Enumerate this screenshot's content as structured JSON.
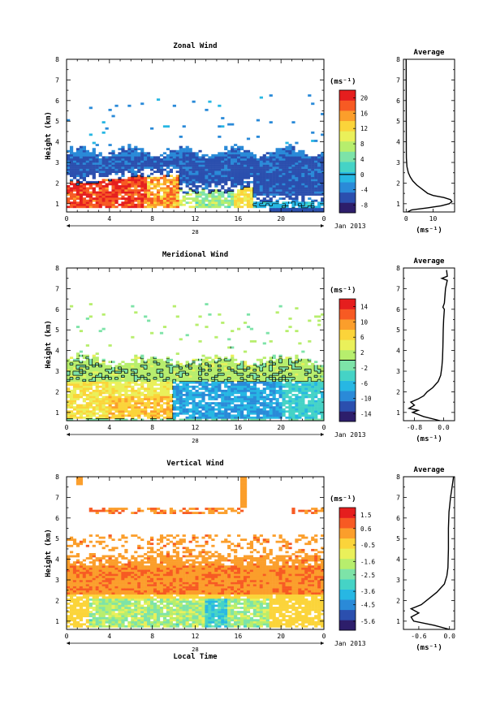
{
  "chart_data": [
    {
      "type": "heatmap",
      "title": "Zonal Wind",
      "ylabel": "Height (km)",
      "xticks": [
        "0",
        "4",
        "8",
        "12",
        "16",
        "20",
        "0"
      ],
      "yticks": [
        "1",
        "2",
        "3",
        "4",
        "5",
        "6",
        "7",
        "8"
      ],
      "xlim": [
        0,
        24
      ],
      "ylim": [
        0.6,
        8
      ],
      "date_day": "28",
      "date_label": "Jan 2013",
      "colorbar": {
        "unit": "(ms⁻¹)",
        "ticks": [
          "20",
          "16",
          "12",
          "8",
          "4",
          "0",
          "-4",
          "-8"
        ],
        "range": [
          -10,
          22
        ],
        "contour_level": 0
      },
      "average_panel": {
        "title": "Average",
        "xlabel": "(ms⁻¹)",
        "xticks": [
          "0",
          "10"
        ],
        "xlim": [
          -1,
          18
        ],
        "profile": [
          [
            0.6,
            0.5
          ],
          [
            0.7,
            2
          ],
          [
            0.8,
            8
          ],
          [
            0.9,
            13
          ],
          [
            1.0,
            16
          ],
          [
            1.1,
            17
          ],
          [
            1.2,
            16.5
          ],
          [
            1.3,
            14
          ],
          [
            1.4,
            10
          ],
          [
            1.5,
            8
          ],
          [
            1.7,
            6
          ],
          [
            1.9,
            4
          ],
          [
            2.1,
            2.5
          ],
          [
            2.3,
            1.5
          ],
          [
            2.5,
            0.8
          ],
          [
            2.8,
            0.3
          ],
          [
            3.2,
            0.1
          ],
          [
            3.6,
            0.05
          ],
          [
            8,
            0
          ]
        ]
      }
    },
    {
      "type": "heatmap",
      "title": "Meridional Wind",
      "ylabel": "Height (km)",
      "xticks": [
        "0",
        "4",
        "8",
        "12",
        "16",
        "20",
        "0"
      ],
      "yticks": [
        "1",
        "2",
        "3",
        "4",
        "5",
        "6",
        "7",
        "8"
      ],
      "xlim": [
        0,
        24
      ],
      "ylim": [
        0.6,
        8
      ],
      "date_day": "28",
      "date_label": "Jan 2013",
      "colorbar": {
        "unit": "(ms⁻¹)",
        "ticks": [
          "14",
          "10",
          "6",
          "2",
          "-2",
          "-6",
          "-10",
          "-14"
        ],
        "range": [
          -16,
          16
        ],
        "contour_level": 0
      },
      "average_panel": {
        "title": "Average",
        "xlabel": "(ms⁻¹)",
        "xticks": [
          "-0.8",
          "0.0"
        ],
        "xlim": [
          -1.1,
          0.3
        ],
        "profile": [
          [
            0.6,
            -0.1
          ],
          [
            0.8,
            -0.55
          ],
          [
            1.0,
            -0.85
          ],
          [
            1.1,
            -0.7
          ],
          [
            1.2,
            -0.95
          ],
          [
            1.35,
            -0.8
          ],
          [
            1.5,
            -0.9
          ],
          [
            1.65,
            -0.7
          ],
          [
            1.8,
            -0.55
          ],
          [
            2.0,
            -0.45
          ],
          [
            2.2,
            -0.3
          ],
          [
            2.5,
            -0.15
          ],
          [
            2.8,
            -0.08
          ],
          [
            3.2,
            -0.05
          ],
          [
            3.6,
            -0.03
          ],
          [
            4.2,
            -0.02
          ],
          [
            5.0,
            -0.01
          ],
          [
            5.5,
            0.0
          ],
          [
            6.0,
            0.02
          ],
          [
            6.1,
            -0.02
          ],
          [
            6.3,
            0.02
          ],
          [
            7.0,
            0.05
          ],
          [
            7.4,
            0.1
          ],
          [
            7.5,
            -0.05
          ],
          [
            7.6,
            0.1
          ],
          [
            7.9,
            0.08
          ]
        ]
      }
    },
    {
      "type": "heatmap",
      "title": "Vertical Wind",
      "ylabel": "Height (km)",
      "xlabel": "Local Time",
      "xticks": [
        "0",
        "4",
        "8",
        "12",
        "16",
        "20",
        "0"
      ],
      "yticks": [
        "1",
        "2",
        "3",
        "4",
        "5",
        "6",
        "7",
        "8"
      ],
      "xlim": [
        0,
        24
      ],
      "ylim": [
        0.6,
        8
      ],
      "date_day": "28",
      "date_label": "Jan 2013",
      "colorbar": {
        "unit": "(ms⁻¹)",
        "ticks": [
          "1.5",
          "0.6",
          "-0.5",
          "-1.6",
          "-2.5",
          "-3.6",
          "-4.5",
          "-5.6"
        ],
        "range": [
          -6.2,
          2.0
        ],
        "contour_level": null
      },
      "average_panel": {
        "title": "Average",
        "xlabel": "(ms⁻¹)",
        "xticks": [
          "-0.6",
          "0.0"
        ],
        "xlim": [
          -0.9,
          0.1
        ],
        "profile": [
          [
            0.6,
            0.0
          ],
          [
            0.8,
            -0.3
          ],
          [
            1.0,
            -0.7
          ],
          [
            1.2,
            -0.75
          ],
          [
            1.4,
            -0.6
          ],
          [
            1.6,
            -0.75
          ],
          [
            1.8,
            -0.55
          ],
          [
            2.1,
            -0.4
          ],
          [
            2.4,
            -0.25
          ],
          [
            2.8,
            -0.1
          ],
          [
            3.2,
            -0.05
          ],
          [
            3.6,
            -0.03
          ],
          [
            4.5,
            -0.02
          ],
          [
            5.5,
            -0.02
          ],
          [
            6.3,
            -0.01
          ],
          [
            6.5,
            0.0
          ],
          [
            7.0,
            0.02
          ],
          [
            7.5,
            0.05
          ],
          [
            8.0,
            0.08
          ]
        ]
      }
    }
  ],
  "colors": {
    "palette": [
      "#2d1e6b",
      "#2b4fae",
      "#2a8ad8",
      "#27b7e3",
      "#45d3c6",
      "#7de3a8",
      "#b7ee6d",
      "#eaf05a",
      "#fbd43a",
      "#fb9e2b",
      "#f75a23",
      "#e51e1e"
    ]
  }
}
